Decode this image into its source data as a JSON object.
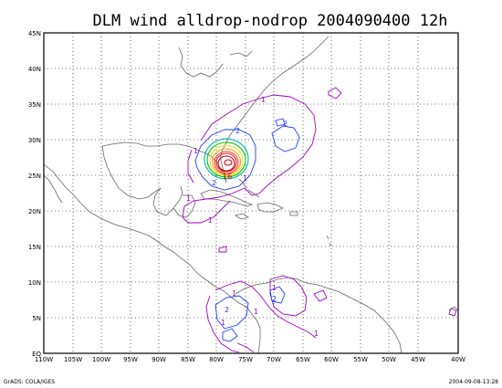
{
  "title": "DLM wind alldrop-nodrop 2004090400 12h",
  "footer": {
    "left": "GrADS: COLA/IGES",
    "right": "2004-09-08-13:28"
  },
  "axes": {
    "x_ticks": [
      "110W",
      "105W",
      "100W",
      "95W",
      "90W",
      "85W",
      "80W",
      "75W",
      "70W",
      "65W",
      "60W",
      "55W",
      "50W",
      "45W",
      "40W"
    ],
    "y_ticks": [
      "EQ",
      "5N",
      "10N",
      "15N",
      "20N",
      "25N",
      "30N",
      "35N",
      "40N",
      "45N"
    ],
    "lon_range": [
      -110,
      -40
    ],
    "lat_range": [
      0,
      45
    ]
  },
  "contour_labels": [
    "1",
    "1",
    "1",
    "1",
    "2",
    "2",
    "2",
    "2",
    "1",
    "1",
    "1",
    "1",
    "2",
    "1",
    "16",
    "1"
  ],
  "colors": {
    "coast": "#555555",
    "contour_1": "#a000c8",
    "contour_2": "#1e3cff",
    "contour_4": "#00b4b4",
    "contour_6": "#00c800",
    "contour_8": "#e6dc32",
    "contour_10": "#f0a000",
    "contour_12": "#fa3c3c",
    "contour_16": "#d20000"
  }
}
